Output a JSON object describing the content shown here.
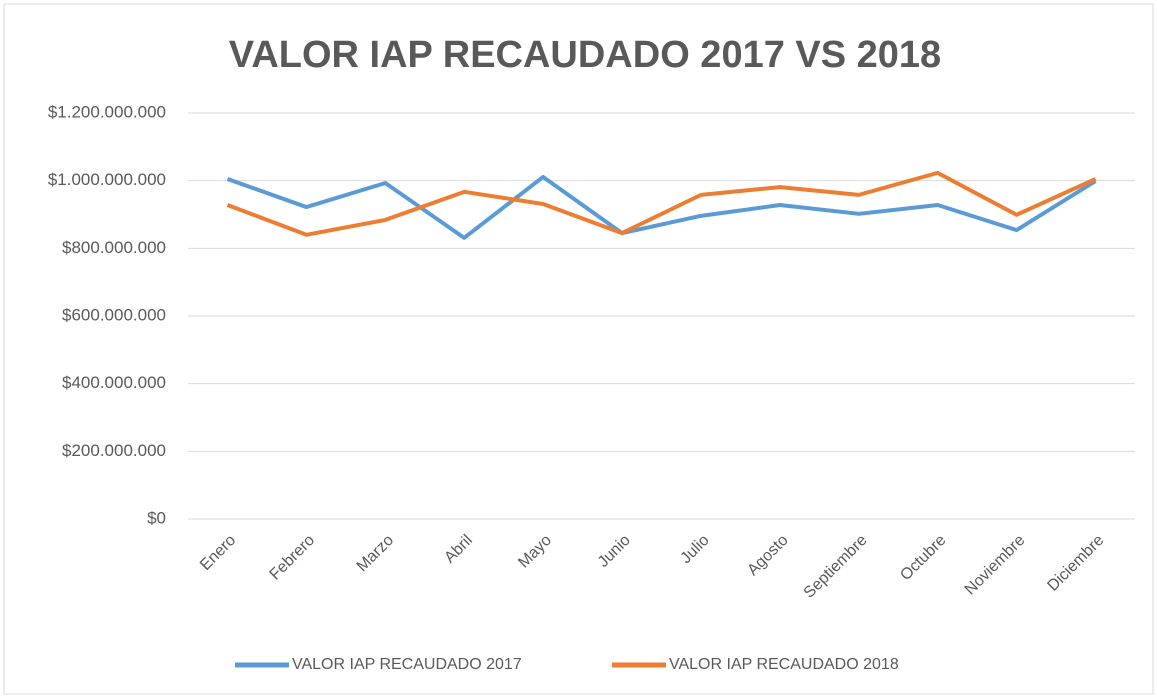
{
  "chart_data": {
    "type": "line",
    "title": "VALOR IAP RECAUDADO 2017 VS 2018",
    "categories": [
      "Enero",
      "Febrero",
      "Marzo",
      "Abril",
      "Mayo",
      "Junio",
      "Julio",
      "Agosto",
      "Septiembre",
      "Octubre",
      "Noviembre",
      "Diciembre"
    ],
    "series": [
      {
        "name": "VALOR IAP RECAUDADO 2017",
        "color": "#5b9bd5",
        "values": [
          1005000000,
          922000000,
          993000000,
          831000000,
          1011000000,
          845000000,
          896000000,
          928000000,
          902000000,
          928000000,
          854000000,
          999000000
        ]
      },
      {
        "name": "VALOR IAP RECAUDADO 2018",
        "color": "#ed7d31",
        "values": [
          928000000,
          840000000,
          884000000,
          967000000,
          931000000,
          845000000,
          958000000,
          981000000,
          958000000,
          1023000000,
          899000000,
          1005000000
        ]
      }
    ],
    "ylim": [
      0,
      1200000000
    ],
    "yticks": [
      {
        "value": 0,
        "label": "$0"
      },
      {
        "value": 200000000,
        "label": "$200.000.000"
      },
      {
        "value": 400000000,
        "label": "$400.000.000"
      },
      {
        "value": 600000000,
        "label": "$600.000.000"
      },
      {
        "value": 800000000,
        "label": "$800.000.000"
      },
      {
        "value": 1000000000,
        "label": "$1.000.000.000"
      },
      {
        "value": 1200000000,
        "label": "$1.200.000.000"
      }
    ],
    "grid": true,
    "legend": "bottom"
  }
}
